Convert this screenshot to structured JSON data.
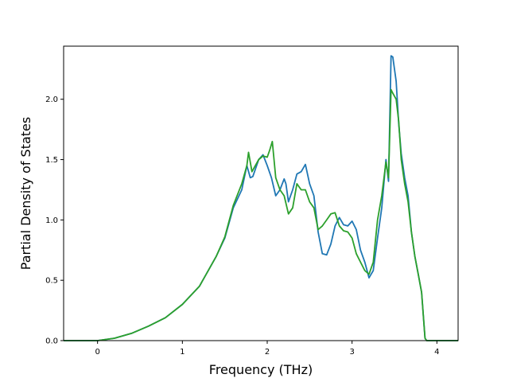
{
  "chart_data": {
    "type": "line",
    "xlabel": "Frequency (THz)",
    "ylabel": "Partial Density of States",
    "xlim": [
      -0.4,
      4.25
    ],
    "ylim": [
      0,
      2.44
    ],
    "xticks": [
      0,
      1,
      2,
      3,
      4
    ],
    "xtick_labels": [
      "0",
      "1",
      "2",
      "3",
      "4"
    ],
    "yticks": [
      0.0,
      0.5,
      1.0,
      1.5,
      2.0
    ],
    "ytick_labels": [
      "0.0",
      "0.5",
      "1.0",
      "1.5",
      "2.0"
    ],
    "grid": false,
    "series": [
      {
        "color": "#1f77b4",
        "x": [
          -0.4,
          -0.2,
          0.0,
          0.2,
          0.4,
          0.6,
          0.8,
          1.0,
          1.2,
          1.4,
          1.5,
          1.6,
          1.7,
          1.76,
          1.8,
          1.83,
          1.9,
          1.95,
          2.0,
          2.05,
          2.1,
          2.15,
          2.2,
          2.22,
          2.25,
          2.3,
          2.35,
          2.4,
          2.45,
          2.5,
          2.55,
          2.6,
          2.65,
          2.7,
          2.75,
          2.8,
          2.85,
          2.9,
          2.95,
          3.0,
          3.05,
          3.1,
          3.15,
          3.2,
          3.25,
          3.3,
          3.35,
          3.4,
          3.43,
          3.46,
          3.48,
          3.52,
          3.55,
          3.58,
          3.62,
          3.66,
          3.7,
          3.74,
          3.78,
          3.82,
          3.86,
          3.88,
          3.92,
          4.25
        ],
        "y": [
          0,
          0,
          0,
          0.02,
          0.06,
          0.12,
          0.19,
          0.3,
          0.45,
          0.7,
          0.85,
          1.1,
          1.25,
          1.45,
          1.35,
          1.36,
          1.5,
          1.54,
          1.45,
          1.35,
          1.2,
          1.25,
          1.34,
          1.3,
          1.15,
          1.25,
          1.38,
          1.4,
          1.46,
          1.3,
          1.2,
          0.9,
          0.72,
          0.71,
          0.8,
          0.95,
          1.02,
          0.96,
          0.95,
          0.99,
          0.92,
          0.75,
          0.65,
          0.52,
          0.58,
          0.85,
          1.1,
          1.5,
          1.32,
          2.36,
          2.35,
          2.15,
          1.8,
          1.55,
          1.35,
          1.2,
          0.9,
          0.7,
          0.55,
          0.4,
          0.02,
          0,
          0,
          0
        ]
      },
      {
        "color": "#2ca02c",
        "x": [
          -0.4,
          -0.2,
          0.0,
          0.2,
          0.4,
          0.6,
          0.8,
          1.0,
          1.2,
          1.4,
          1.5,
          1.6,
          1.7,
          1.76,
          1.78,
          1.82,
          1.9,
          1.95,
          2.0,
          2.03,
          2.06,
          2.1,
          2.15,
          2.2,
          2.25,
          2.3,
          2.35,
          2.4,
          2.45,
          2.5,
          2.55,
          2.6,
          2.65,
          2.7,
          2.75,
          2.8,
          2.85,
          2.9,
          2.95,
          3.0,
          3.05,
          3.1,
          3.15,
          3.2,
          3.25,
          3.3,
          3.35,
          3.4,
          3.43,
          3.46,
          3.48,
          3.52,
          3.55,
          3.58,
          3.62,
          3.66,
          3.7,
          3.74,
          3.78,
          3.82,
          3.86,
          3.88,
          3.92,
          4.25
        ],
        "y": [
          0,
          0,
          0,
          0.02,
          0.06,
          0.12,
          0.19,
          0.3,
          0.45,
          0.7,
          0.86,
          1.12,
          1.3,
          1.45,
          1.56,
          1.4,
          1.5,
          1.53,
          1.52,
          1.58,
          1.65,
          1.35,
          1.25,
          1.2,
          1.05,
          1.1,
          1.3,
          1.25,
          1.25,
          1.15,
          1.1,
          0.92,
          0.95,
          1.0,
          1.05,
          1.06,
          0.95,
          0.91,
          0.9,
          0.85,
          0.72,
          0.65,
          0.58,
          0.55,
          0.65,
          1.0,
          1.2,
          1.48,
          1.35,
          2.08,
          2.05,
          2.0,
          1.82,
          1.5,
          1.3,
          1.15,
          0.9,
          0.7,
          0.55,
          0.4,
          0.02,
          0,
          0,
          0
        ]
      }
    ]
  }
}
